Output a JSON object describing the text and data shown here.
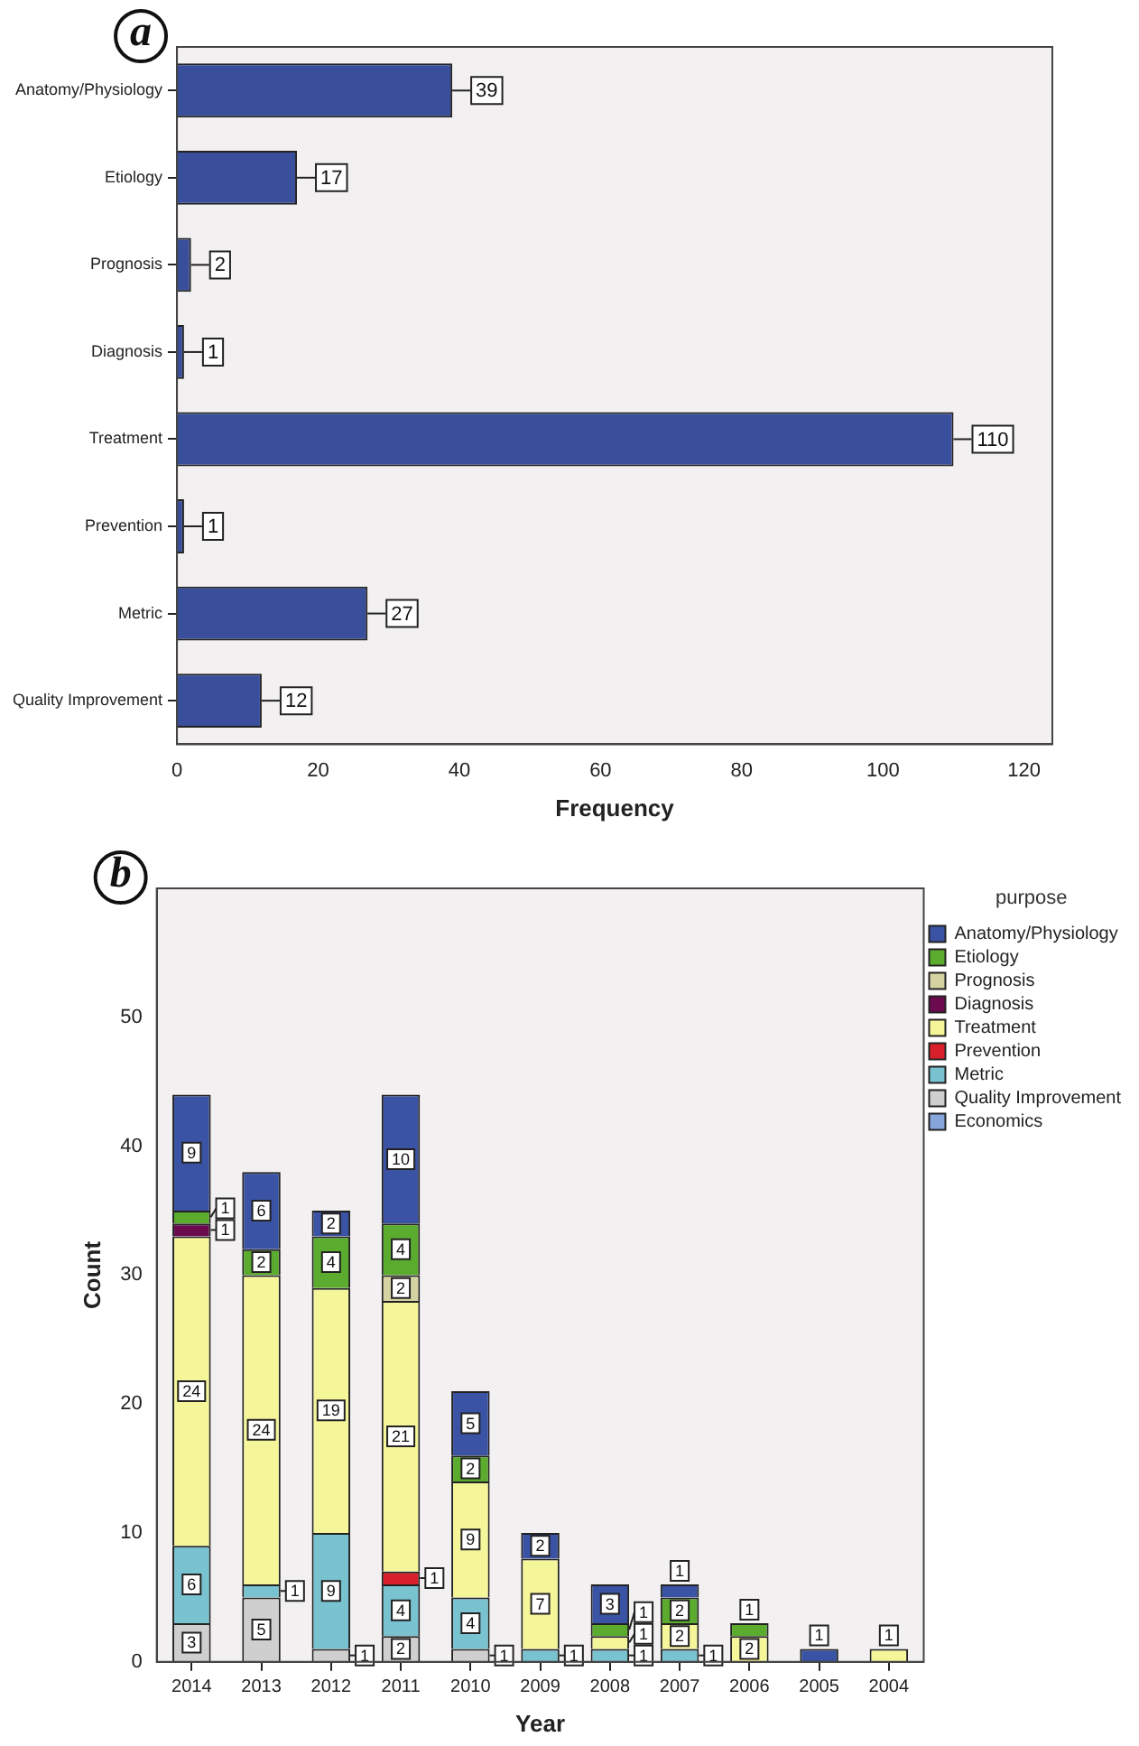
{
  "chart_data": [
    {
      "type": "bar",
      "orientation": "horizontal",
      "annotations": [
        "a"
      ],
      "xlabel": "Frequency",
      "categories": [
        "Anatomy/Physiology",
        "Etiology",
        "Prognosis",
        "Diagnosis",
        "Treatment",
        "Prevention",
        "Metric",
        "Quality Improvement"
      ],
      "values": [
        39,
        17,
        2,
        1,
        110,
        1,
        27,
        12
      ],
      "color": "#3a4f9c",
      "xlim": [
        0,
        124
      ],
      "xticks": [
        0,
        20,
        40,
        60,
        80,
        100,
        120
      ],
      "data_labels": true,
      "grid": false,
      "legend": false
    },
    {
      "type": "bar",
      "stacked": true,
      "annotations": [
        "b"
      ],
      "xlabel": "Year",
      "ylabel": "Count",
      "legend_title": "purpose",
      "legend": "right",
      "data_labels": true,
      "grid": false,
      "categories": [
        "2014",
        "2013",
        "2012",
        "2011",
        "2010",
        "2009",
        "2008",
        "2007",
        "2006",
        "2005",
        "2004"
      ],
      "ylim": [
        0,
        60
      ],
      "yticks": [
        0,
        10,
        20,
        30,
        40,
        50
      ],
      "series": [
        {
          "name": "Economics",
          "color": "#86a6dc",
          "values": [
            null,
            null,
            null,
            null,
            null,
            null,
            null,
            null,
            null,
            null,
            null
          ]
        },
        {
          "name": "Quality Improvement",
          "color": "#cfcfcf",
          "values": [
            3,
            5,
            1,
            2,
            1,
            null,
            null,
            null,
            null,
            null,
            null
          ]
        },
        {
          "name": "Metric",
          "color": "#79c2d0",
          "values": [
            6,
            1,
            9,
            4,
            4,
            1,
            1,
            1,
            null,
            null,
            null
          ]
        },
        {
          "name": "Prevention",
          "color": "#d8202a",
          "values": [
            null,
            null,
            null,
            1,
            null,
            null,
            null,
            null,
            null,
            null,
            null
          ]
        },
        {
          "name": "Treatment",
          "color": "#f5f59a",
          "values": [
            24,
            24,
            19,
            21,
            9,
            7,
            1,
            2,
            2,
            null,
            1
          ]
        },
        {
          "name": "Diagnosis",
          "color": "#6b0a4f",
          "values": [
            1,
            null,
            null,
            null,
            null,
            null,
            null,
            null,
            null,
            null,
            null
          ]
        },
        {
          "name": "Prognosis",
          "color": "#d6d3a2",
          "values": [
            null,
            null,
            null,
            2,
            null,
            null,
            null,
            null,
            null,
            null,
            null
          ]
        },
        {
          "name": "Etiology",
          "color": "#5aab2e",
          "values": [
            1,
            2,
            4,
            4,
            2,
            null,
            1,
            2,
            1,
            null,
            null
          ]
        },
        {
          "name": "Anatomy/Physiology",
          "color": "#3a53a4",
          "values": [
            9,
            6,
            2,
            10,
            5,
            2,
            3,
            1,
            null,
            1,
            null
          ]
        }
      ]
    }
  ]
}
